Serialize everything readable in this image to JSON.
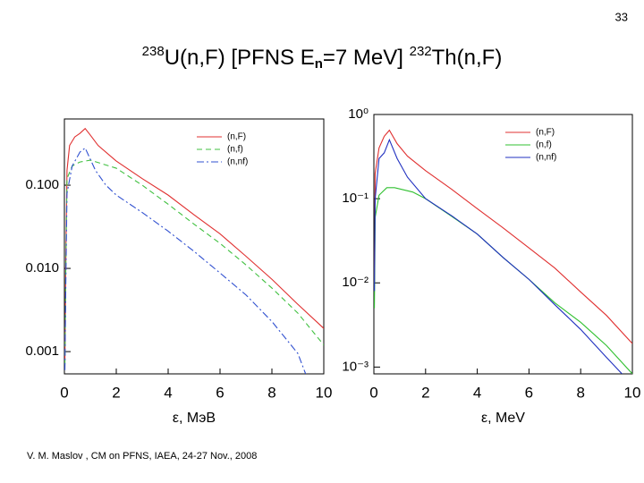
{
  "page_number": "33",
  "title": [
    "238",
    "U(n,F) [PFNS E",
    "n",
    "=7 MeV] ",
    "232",
    "Th(n,F)"
  ],
  "footer": "V. M. Maslov ,  CM on PFNS, IAEA, 24-27 Nov., 2008",
  "chart_data": [
    {
      "type": "line",
      "x_label": "ε, MэB",
      "log_y": true,
      "legend": "upper right",
      "xlim": [
        0,
        10
      ],
      "xticks": [
        0,
        2,
        4,
        6,
        8,
        10
      ],
      "ylim": [
        0.00054,
        0.625
      ],
      "yticks": [
        {
          "value": 0.1,
          "label": "0.100"
        },
        {
          "value": 0.01,
          "label": "0.010"
        },
        {
          "value": 0.001,
          "label": "0.001"
        }
      ],
      "series": [
        {
          "name": "(n,F)",
          "color": "#e03030",
          "dash": "solid",
          "x": [
            0.02,
            0.05,
            0.1,
            0.2,
            0.4,
            0.6,
            0.8,
            1.0,
            1.3,
            2,
            3,
            4,
            5,
            6,
            7,
            8,
            9,
            10
          ],
          "values": [
            0.0008,
            0.01,
            0.15,
            0.3,
            0.38,
            0.42,
            0.48,
            0.4,
            0.3,
            0.195,
            0.12,
            0.076,
            0.044,
            0.026,
            0.014,
            0.0074,
            0.0037,
            0.0019
          ]
        },
        {
          "name": "(n,f)",
          "color": "#40c040",
          "dash": "dashed",
          "x": [
            0.02,
            0.05,
            0.1,
            0.3,
            0.6,
            1.0,
            2,
            3,
            4,
            5,
            6,
            7,
            8,
            9,
            10
          ],
          "values": [
            0.0007,
            0.008,
            0.12,
            0.17,
            0.19,
            0.2,
            0.16,
            0.1,
            0.059,
            0.034,
            0.02,
            0.011,
            0.0058,
            0.0029,
            0.0012
          ]
        },
        {
          "name": "(n,nf)",
          "color": "#3050d0",
          "dash": "dashdot",
          "x": [
            0.02,
            0.05,
            0.1,
            0.3,
            0.6,
            0.8,
            1.2,
            1.6,
            2,
            3,
            4,
            5,
            6,
            7,
            8,
            9,
            9.3
          ],
          "values": [
            0.0006,
            0.005,
            0.08,
            0.17,
            0.25,
            0.28,
            0.15,
            0.1,
            0.076,
            0.047,
            0.028,
            0.016,
            0.0088,
            0.0048,
            0.0023,
            0.00095,
            0.00054
          ]
        }
      ]
    },
    {
      "type": "line",
      "x_label": "ε, MeV",
      "log_y": true,
      "legend": "upper right",
      "xlim": [
        0,
        10
      ],
      "xticks": [
        0,
        2,
        4,
        6,
        8,
        10
      ],
      "ylim": [
        0.00083,
        1
      ],
      "yticks": [
        {
          "value": 1,
          "label": "10⁰"
        },
        {
          "value": 0.1,
          "label": "10⁻¹"
        },
        {
          "value": 0.01,
          "label": "10⁻²"
        },
        {
          "value": 0.001,
          "label": "10⁻³"
        }
      ],
      "series": [
        {
          "name": "(n,F)",
          "color": "#e03030",
          "dash": "solid",
          "x": [
            0.02,
            0.05,
            0.2,
            0.4,
            0.6,
            0.9,
            1.3,
            2,
            3,
            4,
            5,
            6,
            7,
            8,
            9,
            10
          ],
          "values": [
            0.01,
            0.2,
            0.4,
            0.55,
            0.65,
            0.45,
            0.32,
            0.215,
            0.13,
            0.076,
            0.045,
            0.026,
            0.015,
            0.0078,
            0.0041,
            0.0019
          ]
        },
        {
          "name": "(n,f)",
          "color": "#30c030",
          "dash": "solid",
          "x": [
            0.02,
            0.05,
            0.2,
            0.5,
            0.8,
            1.5,
            2,
            3,
            4,
            5,
            6,
            7,
            8,
            9,
            10
          ],
          "values": [
            0.005,
            0.06,
            0.11,
            0.135,
            0.135,
            0.12,
            0.1,
            0.062,
            0.038,
            0.02,
            0.011,
            0.0058,
            0.0034,
            0.0018,
            0.00083
          ]
        },
        {
          "name": "(n,nf)",
          "color": "#2030c0",
          "dash": "solid",
          "x": [
            0.02,
            0.05,
            0.2,
            0.4,
            0.6,
            0.9,
            1.3,
            2,
            3,
            4,
            5,
            6,
            7,
            8,
            9,
            9.6
          ],
          "values": [
            0.008,
            0.1,
            0.3,
            0.35,
            0.5,
            0.3,
            0.18,
            0.1,
            0.063,
            0.038,
            0.02,
            0.011,
            0.0055,
            0.0028,
            0.0013,
            0.00083
          ]
        }
      ]
    }
  ]
}
